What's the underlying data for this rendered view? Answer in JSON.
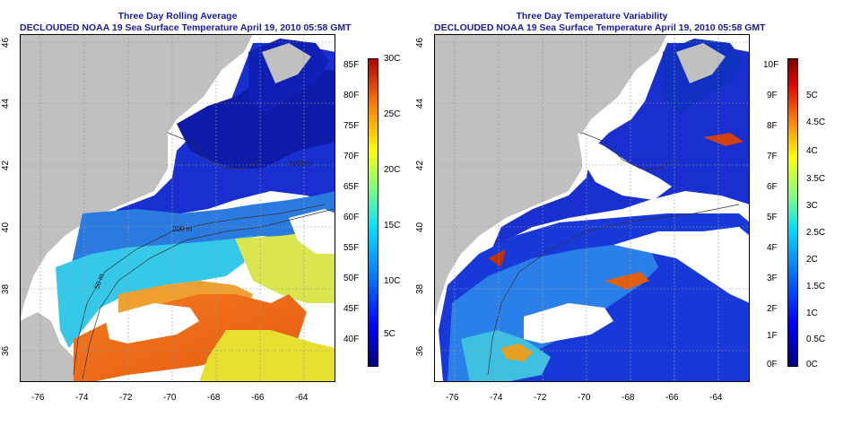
{
  "panels": [
    {
      "id": "left",
      "title_line1": "Three Day Rolling Average",
      "title_line2": "DECLOUDED NOAA 19 Sea Surface Temperature April 19, 2010 05:58 GMT",
      "colorbar_f": [
        "85F",
        "80F",
        "75F",
        "70F",
        "65F",
        "60F",
        "55F",
        "50F",
        "45F",
        "40F"
      ],
      "colorbar_c": [
        "30C",
        "25C",
        "20C",
        "15C",
        "10C",
        "5C"
      ],
      "contours": [
        "50 m",
        "200 m",
        "200 m",
        "200 m",
        "1000 m"
      ]
    },
    {
      "id": "right",
      "title_line1": "Three Day Temperature Variability",
      "title_line2": "DECLOUDED NOAA 19 Sea Surface Temperature April 19, 2010 05:58 GMT",
      "colorbar_f": [
        "10F",
        "9F",
        "8F",
        "7F",
        "6F",
        "5F",
        "4F",
        "3F",
        "2F",
        "1F",
        "0F"
      ],
      "colorbar_c": [
        "5C",
        "4.5C",
        "4C",
        "3.5C",
        "3C",
        "2.5C",
        "2C",
        "1.5C",
        "1C",
        "0.5C",
        "0C"
      ]
    }
  ],
  "lon_labels": [
    "-76",
    "-74",
    "-72",
    "-70",
    "-68",
    "-66",
    "-64"
  ],
  "lat_labels": [
    "46",
    "44",
    "42",
    "40",
    "38",
    "36"
  ],
  "colors": {
    "title": "#1a1aa6",
    "land": "#c0c0c0",
    "cloud": "#ffffff"
  }
}
